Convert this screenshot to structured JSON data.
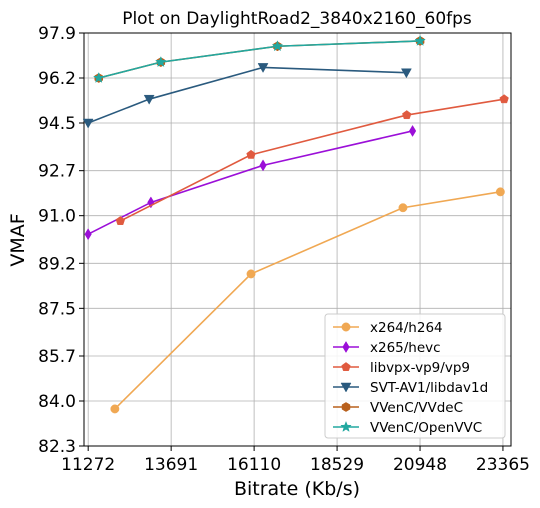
{
  "chart_data": {
    "type": "line",
    "title": "Plot on DaylightRoad2_3840x2160_60fps",
    "xlabel": "Bitrate (Kb/s)",
    "ylabel": "VMAF",
    "xlim": [
      11150,
      23600
    ],
    "ylim": [
      82.3,
      97.9
    ],
    "xticks": [
      11272,
      13691,
      16110,
      18529,
      20948,
      23365
    ],
    "yticks": [
      82.3,
      84.0,
      85.7,
      87.5,
      89.2,
      91.0,
      92.7,
      94.5,
      96.2,
      97.9
    ],
    "grid": true,
    "legend_position": "bottom-right",
    "series": [
      {
        "name": "x264/h264",
        "color": "#f0a853",
        "marker": "circle",
        "x": [
          12050,
          16020,
          20450,
          23290
        ],
        "y": [
          83.7,
          88.8,
          91.3,
          91.9
        ]
      },
      {
        "name": "x265/hevc",
        "color": "#9b0fd8",
        "marker": "diamond",
        "x": [
          11270,
          13100,
          16370,
          20730
        ],
        "y": [
          90.3,
          91.5,
          92.9,
          94.2
        ]
      },
      {
        "name": "libvpx-vp9/vp9",
        "color": "#e05a3f",
        "marker": "pentagon",
        "x": [
          12210,
          16020,
          20560,
          23400
        ],
        "y": [
          90.8,
          93.3,
          94.8,
          95.4
        ]
      },
      {
        "name": "SVT-AV1/libdav1d",
        "color": "#2a5a7e",
        "marker": "triangle-down",
        "x": [
          11270,
          13050,
          16370,
          20550
        ],
        "y": [
          94.5,
          95.4,
          96.6,
          96.4
        ]
      },
      {
        "name": "VVenC/VVdeC",
        "color": "#b8601c",
        "marker": "hexagon",
        "x": [
          11580,
          13390,
          16790,
          20950
        ],
        "y": [
          96.2,
          96.8,
          97.4,
          97.6
        ]
      },
      {
        "name": "VVenC/OpenVVC",
        "color": "#22a8a0",
        "marker": "star",
        "x": [
          11580,
          13390,
          16790,
          20950
        ],
        "y": [
          96.2,
          96.8,
          97.4,
          97.6
        ]
      }
    ]
  }
}
